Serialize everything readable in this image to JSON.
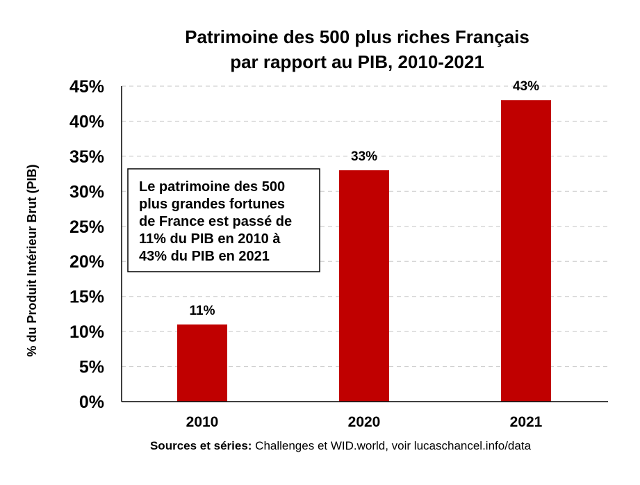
{
  "chart_data": {
    "type": "bar",
    "title_lines": [
      "Patrimoine des 500 plus riches Français",
      "par rapport au PIB, 2010-2021"
    ],
    "xlabel": "",
    "ylabel": "% du Produit Intérieur Brut (PIB)",
    "categories": [
      "2010",
      "2020",
      "2021"
    ],
    "values": [
      11,
      33,
      43
    ],
    "data_labels": [
      "11%",
      "33%",
      "43%"
    ],
    "ylim": [
      0,
      45
    ],
    "yticks": [
      0,
      5,
      10,
      15,
      20,
      25,
      30,
      35,
      40,
      45
    ],
    "ytick_labels": [
      "0%",
      "5%",
      "10%",
      "15%",
      "20%",
      "25%",
      "30%",
      "35%",
      "40%",
      "45%"
    ],
    "grid": "horizontal dashed",
    "bar_color": "#c00000",
    "annotation_lines": [
      "Le patrimoine des 500",
      "plus grandes fortunes",
      "de France est passé de",
      "11% du PIB en 2010 à",
      "43% du PIB en 2021"
    ],
    "source": {
      "label": "Sources et séries:",
      "text": " Challenges et WID.world, voir lucaschancel.info/data"
    }
  }
}
